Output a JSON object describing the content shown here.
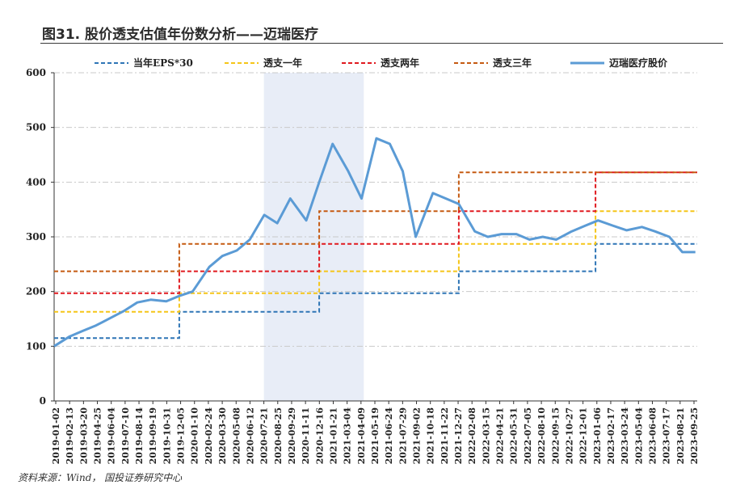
{
  "title": "图31. 股价透支估值年份数分析——迈瑞医疗",
  "source": "资料来源：Wind， 国投证券研究中心",
  "colors": {
    "eps": "#2e75b6",
    "y1": "#f5c518",
    "y2": "#e0191f",
    "y3": "#c55a11",
    "price": "#5b9bd5",
    "shade": "#e8edf7"
  },
  "chart_data": {
    "type": "line",
    "title": "图31. 股价透支估值年份数分析——迈瑞医疗",
    "xlabel": "",
    "ylabel": "",
    "ylim": [
      0,
      600
    ],
    "yticks": [
      0,
      100,
      200,
      300,
      400,
      500,
      600
    ],
    "x_range": [
      "2019-01-02",
      "2023-09-30"
    ],
    "grid": true,
    "legend_position": "top",
    "shaded_period": [
      "2020-07-20",
      "2021-04-15"
    ],
    "x_tick_labels": [
      "2019-01-02",
      "2019-02-13",
      "2019-03-20",
      "2019-04-25",
      "2019-06-04",
      "2019-07-10",
      "2019-08-14",
      "2019-09-19",
      "2019-10-31",
      "2019-12-05",
      "2020-01-10",
      "2020-02-24",
      "2020-03-30",
      "2020-05-08",
      "2020-06-12",
      "2020-07-21",
      "2020-08-25",
      "2020-09-29",
      "2020-11-11",
      "2020-12-16",
      "2021-01-21",
      "2021-03-04",
      "2021-04-09",
      "2021-05-19",
      "2021-06-24",
      "2021-07-29",
      "2021-09-02",
      "2021-10-18",
      "2021-11-22",
      "2021-12-27",
      "2022-02-08",
      "2022-03-15",
      "2022-04-21",
      "2022-05-31",
      "2022-07-05",
      "2022-08-10",
      "2022-09-15",
      "2022-10-27",
      "2022-12-01",
      "2023-01-06",
      "2023-02-17",
      "2023-03-24",
      "2023-05-04",
      "2023-06-08",
      "2023-07-17",
      "2023-08-21",
      "2023-09-25"
    ],
    "series": [
      {
        "name": "当年EPS*30",
        "style": "dashed",
        "x": [
          "2019-01-02",
          "2019-12-05",
          "2019-12-05",
          "2020-12-16",
          "2020-12-16",
          "2021-12-27",
          "2021-12-27",
          "2022-12-30",
          "2022-12-30",
          "2023-09-30"
        ],
        "values": [
          115,
          115,
          163,
          163,
          197,
          197,
          237,
          237,
          287,
          287
        ]
      },
      {
        "name": "透支一年",
        "style": "dashed",
        "x": [
          "2019-01-02",
          "2019-12-05",
          "2019-12-05",
          "2020-12-16",
          "2020-12-16",
          "2021-12-27",
          "2021-12-27",
          "2022-12-30",
          "2022-12-30",
          "2023-09-30"
        ],
        "values": [
          163,
          163,
          197,
          197,
          237,
          237,
          287,
          287,
          347,
          347
        ]
      },
      {
        "name": "透支两年",
        "style": "dashed",
        "x": [
          "2019-01-02",
          "2019-12-05",
          "2019-12-05",
          "2020-12-16",
          "2020-12-16",
          "2021-12-27",
          "2021-12-27",
          "2022-12-30",
          "2022-12-30",
          "2023-09-30"
        ],
        "values": [
          197,
          197,
          237,
          237,
          287,
          287,
          347,
          347,
          418,
          418
        ]
      },
      {
        "name": "透支三年",
        "style": "dashed",
        "x": [
          "2019-01-02",
          "2019-12-05",
          "2019-12-05",
          "2020-12-16",
          "2020-12-16",
          "2021-12-27",
          "2021-12-27",
          "2022-12-30",
          "2022-12-30",
          "2023-09-30"
        ],
        "values": [
          237,
          237,
          287,
          287,
          347,
          347,
          418,
          418,
          418,
          418
        ]
      },
      {
        "name": "迈瑞医疗股价",
        "style": "solid",
        "x": [
          "2019-01-02",
          "2019-02-13",
          "2019-03-20",
          "2019-04-25",
          "2019-06-04",
          "2019-07-10",
          "2019-08-14",
          "2019-09-19",
          "2019-10-31",
          "2019-12-05",
          "2020-01-10",
          "2020-02-24",
          "2020-03-30",
          "2020-05-08",
          "2020-06-12",
          "2020-07-21",
          "2020-08-25",
          "2020-09-29",
          "2020-11-11",
          "2020-12-16",
          "2021-01-21",
          "2021-03-04",
          "2021-04-09",
          "2021-05-19",
          "2021-06-24",
          "2021-07-29",
          "2021-09-02",
          "2021-10-18",
          "2021-11-22",
          "2021-12-27",
          "2022-02-08",
          "2022-03-15",
          "2022-04-21",
          "2022-05-31",
          "2022-07-05",
          "2022-08-10",
          "2022-09-15",
          "2022-10-27",
          "2022-12-01",
          "2023-01-06",
          "2023-02-17",
          "2023-03-24",
          "2023-05-04",
          "2023-06-08",
          "2023-07-17",
          "2023-08-21",
          "2023-09-25"
        ],
        "values": [
          100,
          118,
          128,
          138,
          152,
          165,
          180,
          185,
          182,
          192,
          200,
          245,
          265,
          275,
          295,
          340,
          325,
          370,
          330,
          400,
          470,
          420,
          370,
          480,
          470,
          420,
          300,
          380,
          370,
          360,
          310,
          300,
          305,
          305,
          295,
          300,
          295,
          310,
          320,
          330,
          320,
          312,
          318,
          310,
          300,
          272,
          272
        ]
      }
    ]
  }
}
